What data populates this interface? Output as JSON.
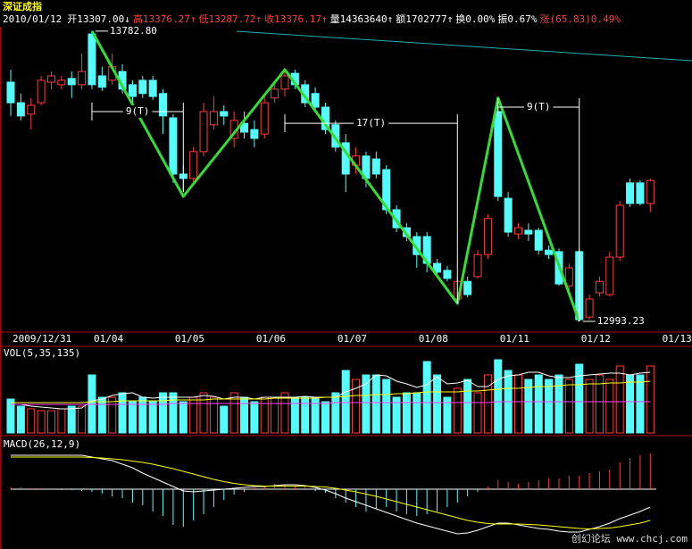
{
  "header": {
    "title": "深证成指",
    "date": "2010/01/12",
    "items": [
      {
        "text": "开13307.00↓",
        "color": "#ffffff"
      },
      {
        "text": "高13376.27↑",
        "color": "#ff4040"
      },
      {
        "text": "低13287.72↑",
        "color": "#ff4040"
      },
      {
        "text": "收13376.17↑",
        "color": "#ff4040"
      },
      {
        "text": "量14363640↑",
        "color": "#ffffff"
      },
      {
        "text": "额1702777↑",
        "color": "#ffffff"
      },
      {
        "text": "换0.00%",
        "color": "#ffffff"
      },
      {
        "text": "振0.67%",
        "color": "#ffffff"
      },
      {
        "text": "涨(65.83)0.49%",
        "color": "#ff4040"
      }
    ]
  },
  "watermark": "创幻论坛 www.chcj.com",
  "chart_data": [
    {
      "type": "candlestick",
      "categories": [
        "2009/12/31",
        null,
        null,
        null,
        null,
        null,
        null,
        null,
        "01/04",
        null,
        null,
        null,
        null,
        null,
        null,
        null,
        "01/05",
        null,
        null,
        null,
        null,
        null,
        null,
        null,
        "01/06",
        null,
        null,
        null,
        null,
        null,
        null,
        null,
        "01/07",
        null,
        null,
        null,
        null,
        null,
        null,
        null,
        "01/08",
        null,
        null,
        null,
        null,
        null,
        null,
        null,
        "01/11",
        null,
        null,
        null,
        null,
        null,
        null,
        null,
        "01/12",
        null,
        null,
        null,
        null,
        null,
        null,
        null,
        "01/13"
      ],
      "open": [
        13644,
        13588,
        13557,
        13588,
        13644,
        13637,
        13654,
        13637,
        13775,
        13661,
        13649,
        13673,
        13637,
        13649,
        13649,
        13613,
        13547,
        13394,
        13382,
        13455,
        13528,
        13564,
        13491,
        13532,
        13515,
        13503,
        13601,
        13625,
        13668,
        13637,
        13613,
        13576,
        13528,
        13479,
        13418,
        13443,
        13435,
        13406,
        13297,
        13248,
        13224,
        13224,
        13151,
        13132,
        13054,
        13102,
        13115,
        13175,
        13564,
        13328,
        13231,
        13241,
        13241,
        13187,
        13183,
        13090,
        13183,
        13005,
        13071,
        13066,
        13168,
        13370,
        13370,
        13314,
        null
      ],
      "high": [
        13678,
        13613,
        13601,
        13661,
        13673,
        13661,
        13673,
        13722,
        13782.8,
        13686,
        13722,
        13693,
        13649,
        13661,
        13661,
        13625,
        13557,
        13418,
        13467,
        13588,
        13605,
        13581,
        13564,
        13564,
        13540,
        13613,
        13637,
        13678,
        13678,
        13649,
        13630,
        13588,
        13540,
        13503,
        13467,
        13455,
        13455,
        13418,
        13309,
        13260,
        13236,
        13236,
        13163,
        13144,
        13115,
        13115,
        13187,
        13285,
        13601,
        13345,
        13260,
        13260,
        13248,
        13200,
        13192,
        13151,
        13192,
        13066,
        13115,
        13183,
        13321,
        13382,
        13377,
        13382,
        null
      ],
      "low": [
        13552,
        13540,
        13515,
        13581,
        13625,
        13625,
        13601,
        13625,
        13625,
        13620,
        13637,
        13613,
        13588,
        13601,
        13596,
        13503,
        13370,
        13345,
        13370,
        13443,
        13515,
        13528,
        13467,
        13491,
        13467,
        13491,
        13588,
        13605,
        13625,
        13576,
        13564,
        13503,
        13455,
        13345,
        13394,
        13358,
        13382,
        13285,
        13236,
        13212,
        13139,
        13127,
        13115,
        13102,
        13042,
        13059,
        13110,
        13163,
        13321,
        13224,
        13217,
        13212,
        13175,
        13163,
        13090,
        13078,
        12993.23,
        12998,
        13061,
        13061,
        13158,
        13304,
        13309,
        13290,
        null
      ],
      "close": [
        13588,
        13552,
        13581,
        13649,
        13661,
        13649,
        13637,
        13673,
        13637,
        13630,
        13686,
        13625,
        13605,
        13613,
        13605,
        13552,
        13394,
        13382,
        13455,
        13564,
        13564,
        13552,
        13540,
        13508,
        13491,
        13588,
        13625,
        13661,
        13637,
        13588,
        13576,
        13515,
        13467,
        13394,
        13443,
        13382,
        13394,
        13297,
        13248,
        13224,
        13175,
        13151,
        13127,
        13110,
        13102,
        13066,
        13175,
        13273,
        13333,
        13236,
        13248,
        13231,
        13187,
        13175,
        13095,
        13139,
        12998,
        13054,
        13102,
        13168,
        13309,
        13314,
        13314,
        13376.17,
        null
      ],
      "up_color": "#ff3c3c",
      "down_color": "#54fcfc",
      "ylim": [
        12969,
        13831
      ],
      "annotations": [
        {
          "index": 8,
          "value": 13782.8,
          "label": "13782.80"
        },
        {
          "index": 56,
          "value": 12993.23,
          "label": "12993.23"
        }
      ],
      "zigzag": {
        "color": "#33dd33",
        "x": [
          8,
          17,
          27,
          44,
          48,
          56
        ],
        "values": [
          13782.8,
          13333,
          13678,
          13042,
          13601,
          12993.23
        ]
      },
      "cycles": [
        {
          "label": "9(T)",
          "from": 8,
          "to": 17,
          "level": 13564
        },
        {
          "label": "17(T)",
          "from": 27,
          "to": 44,
          "level": 13532
        },
        {
          "label": "9(T)",
          "from": 48,
          "to": 56,
          "level": 13576
        }
      ],
      "cycle_color": "#ffffff"
    },
    {
      "type": "bar",
      "title": "VOL(5,35,135)",
      "values": [
        1900000,
        1500000,
        1350000,
        1250000,
        1250000,
        1350000,
        1500000,
        1500000,
        3250000,
        2000000,
        2000000,
        2250000,
        1750000,
        2000000,
        1750000,
        2250000,
        2250000,
        1750000,
        2000000,
        2250000,
        2000000,
        1500000,
        2250000,
        2000000,
        1750000,
        2000000,
        2000000,
        2250000,
        2000000,
        2000000,
        2000000,
        1750000,
        2250000,
        3500000,
        3000000,
        3250000,
        3250000,
        3000000,
        2000000,
        2250000,
        2250000,
        4000000,
        3250000,
        2000000,
        2500000,
        3000000,
        2250000,
        3250000,
        4100000,
        3500000,
        3250000,
        3000000,
        3250000,
        3000000,
        3250000,
        3000000,
        3850000,
        3000000,
        3250000,
        3000000,
        3750000,
        3250000,
        3250000,
        3750000,
        null
      ],
      "ylim": [
        0,
        4750000
      ],
      "lines": [
        {
          "color": "#ffffff",
          "values": [
            1600000,
            1600000,
            1500000,
            1450000,
            1400000,
            1350000,
            1350000,
            1400000,
            1800000,
            1900000,
            2100000,
            2200000,
            2250000,
            2000000,
            1950000,
            2000000,
            2000000,
            2000000,
            2000000,
            2100000,
            2050000,
            1900000,
            2000000,
            2000000,
            1900000,
            2000000,
            2000000,
            2000000,
            2000000,
            2050000,
            2000000,
            2000000,
            2000000,
            2300000,
            2500000,
            2750000,
            3250000,
            3200000,
            2900000,
            2750000,
            2550000,
            2700000,
            3150000,
            2750000,
            2800000,
            2950000,
            2600000,
            2600000,
            3000000,
            3200000,
            3250000,
            3400000,
            3400000,
            3200000,
            3100000,
            3100000,
            3200000,
            3250000,
            3300000,
            3350000,
            3350000,
            3250000,
            3350000,
            3400000,
            null
          ]
        },
        {
          "color": "#ffff00",
          "values": [
            1700000,
            1700000,
            1700000,
            1700000,
            1700000,
            1700000,
            1700000,
            1700000,
            1750000,
            1750000,
            1750000,
            1800000,
            1800000,
            1800000,
            1800000,
            1800000,
            1850000,
            1850000,
            1850000,
            1850000,
            1900000,
            1900000,
            1900000,
            1900000,
            1900000,
            1900000,
            1950000,
            1950000,
            1950000,
            1950000,
            1950000,
            2000000,
            2000000,
            2050000,
            2100000,
            2100000,
            2150000,
            2150000,
            2200000,
            2200000,
            2250000,
            2300000,
            2300000,
            2300000,
            2300000,
            2350000,
            2350000,
            2400000,
            2450000,
            2500000,
            2500000,
            2550000,
            2600000,
            2600000,
            2650000,
            2700000,
            2700000,
            2750000,
            2750000,
            2800000,
            2800000,
            2850000,
            2850000,
            2900000,
            null
          ]
        },
        {
          "color": "#ff40ff",
          "values": [
            1600000,
            1600000,
            1600000,
            1600000,
            1600000,
            1600000,
            1600000,
            1600000,
            1600000,
            1600000,
            1600000,
            1600000,
            1600000,
            1600000,
            1600000,
            1600000,
            1650000,
            1650000,
            1650000,
            1650000,
            1650000,
            1650000,
            1650000,
            1650000,
            1650000,
            1650000,
            1650000,
            1650000,
            1650000,
            1650000,
            1650000,
            1650000,
            1700000,
            1700000,
            1700000,
            1700000,
            1700000,
            1700000,
            1700000,
            1700000,
            1700000,
            1700000,
            1700000,
            1700000,
            1700000,
            1700000,
            1700000,
            1700000,
            1750000,
            1750000,
            1750000,
            1750000,
            1750000,
            1750000,
            1750000,
            1750000,
            1750000,
            1750000,
            1750000,
            1750000,
            1750000,
            1750000,
            1750000,
            1750000,
            null
          ]
        }
      ]
    },
    {
      "type": "macd",
      "title": "MACD(26,12,9)",
      "ylim": [
        -128,
        96
      ],
      "up_color": "#ff3c3c",
      "down_color": "#54fcfc",
      "histogram": [
        4,
        4,
        2,
        2,
        0,
        -2,
        -2,
        -4,
        -6,
        -10,
        -16,
        -20,
        -30,
        -36,
        -50,
        -60,
        -80,
        -84,
        -70,
        -56,
        -40,
        -24,
        -12,
        -6,
        4,
        8,
        12,
        10,
        8,
        6,
        -4,
        -8,
        -20,
        -30,
        -40,
        -50,
        -44,
        -40,
        -50,
        -56,
        -60,
        -56,
        -50,
        -40,
        -30,
        -16,
        -6,
        6,
        20,
        16,
        12,
        16,
        20,
        24,
        24,
        30,
        30,
        36,
        40,
        44,
        60,
        70,
        76,
        80,
        null
      ],
      "lines": [
        {
          "color": "#ffffff",
          "values": [
            76,
            76,
            76,
            76,
            76,
            76,
            76,
            76,
            72,
            68,
            64,
            56,
            48,
            36,
            26,
            16,
            6,
            -4,
            -6,
            -4,
            -2,
            0,
            2,
            4,
            6,
            6,
            8,
            10,
            10,
            8,
            4,
            -2,
            -10,
            -20,
            -28,
            -36,
            -44,
            -52,
            -60,
            -68,
            -76,
            -82,
            -88,
            -94,
            -100,
            -98,
            -92,
            -84,
            -76,
            -76,
            -80,
            -84,
            -88,
            -90,
            -94,
            -96,
            -96,
            -90,
            -84,
            -76,
            -66,
            -58,
            -50,
            -40,
            null
          ]
        },
        {
          "color": "#ffff00",
          "values": [
            72,
            72,
            72,
            72,
            72,
            72,
            72,
            72,
            71,
            70,
            68,
            66,
            63,
            60,
            56,
            51,
            46,
            40,
            34,
            28,
            22,
            17,
            13,
            10,
            8,
            7,
            7,
            7,
            7,
            7,
            6,
            5,
            2,
            -2,
            -6,
            -11,
            -16,
            -22,
            -28,
            -34,
            -40,
            -46,
            -52,
            -58,
            -64,
            -70,
            -74,
            -77,
            -78,
            -78,
            -78,
            -79,
            -80,
            -82,
            -84,
            -86,
            -88,
            -89,
            -88,
            -87,
            -84,
            -80,
            -76,
            -70,
            null
          ]
        }
      ]
    }
  ]
}
